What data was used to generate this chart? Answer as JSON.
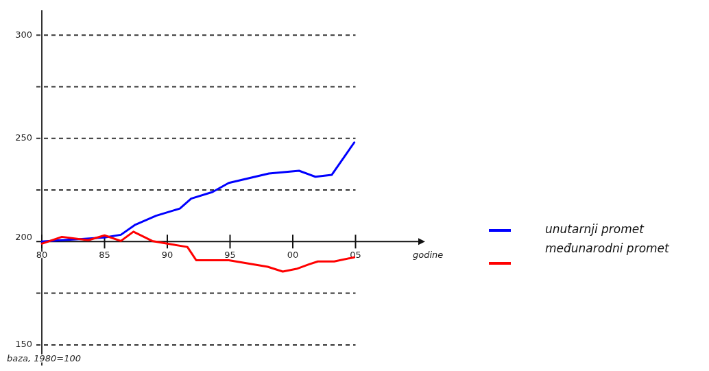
{
  "chart_data": {
    "type": "line",
    "xlabel": "godine",
    "annotations": [
      "baza, 1980=100"
    ],
    "xlim": [
      1980,
      2010
    ],
    "ylim": [
      140,
      312
    ],
    "xticks": [
      {
        "value": 1980,
        "label": "80"
      },
      {
        "value": 1985,
        "label": "85"
      },
      {
        "value": 1990,
        "label": "90"
      },
      {
        "value": 1995,
        "label": "95"
      },
      {
        "value": 2000,
        "label": "00"
      },
      {
        "value": 2005,
        "label": "05"
      }
    ],
    "yticks": [
      {
        "value": 150,
        "label": "150"
      },
      {
        "value": 175,
        "label": null
      },
      200,
      {
        "value": 225,
        "label": null
      },
      250,
      {
        "value": 275,
        "label": null
      },
      300
    ],
    "grid": "y",
    "legend": "right",
    "marker": "none",
    "line_style": "solid",
    "series": [
      {
        "name": "unutarnji promet",
        "color": "#0000ff",
        "x": [
          1980,
          1981.5,
          1983.2,
          1985,
          1986.3,
          1987.4,
          1989.1,
          1991,
          1991.9,
          1993.6,
          1994.9,
          1998.1,
          2000.5,
          2001.8,
          2003.1,
          2004.9
        ],
        "values": [
          200,
          200.7,
          201.3,
          202,
          203.3,
          208,
          212.5,
          216,
          220.8,
          224,
          228.4,
          233,
          234.3,
          231.4,
          232.3,
          248
        ]
      },
      {
        "name": "međunarodni promet",
        "color": "#ff0000",
        "x": [
          1980,
          1981.6,
          1983.7,
          1985,
          1986.3,
          1987.3,
          1988.8,
          1990,
          1991.6,
          1992.3,
          1994.9,
          1998,
          1999.2,
          2000.3,
          2001.3,
          2002,
          2003.3,
          2004.9
        ],
        "values": [
          199,
          202.3,
          200.7,
          203,
          200.3,
          204.8,
          200.3,
          199,
          197.4,
          191,
          191,
          187.8,
          185.5,
          186.8,
          189,
          190.4,
          190.4,
          192.4
        ]
      }
    ]
  }
}
